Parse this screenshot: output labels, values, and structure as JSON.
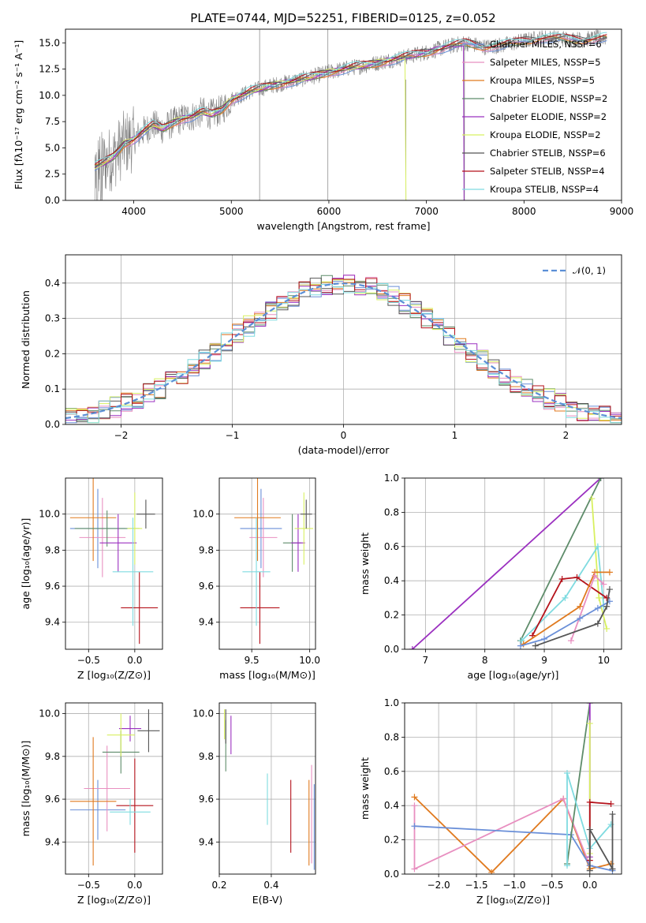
{
  "page_title": "PLATE=0744, MJD=52251, FIBERID=0125, z=0.052",
  "colors": {
    "chabrier_miles": "#6a8fd8",
    "salpeter_miles": "#e88fc0",
    "kroupa_miles": "#e07a1f",
    "chabrier_elodie": "#5e8c6a",
    "salpeter_elodie": "#9b30c0",
    "kroupa_elodie": "#d8f060",
    "chabrier_stelib": "#555555",
    "salpeter_stelib": "#b5121b",
    "kroupa_stelib": "#7fdbe0",
    "data": "#808080",
    "normal": "#5b8fd6"
  },
  "chart_data": [
    {
      "id": "spectrum",
      "type": "line",
      "xlabel": "wavelength [Angstrom, rest frame]",
      "ylabel": "Flux [fλ10⁻¹⁷ erg cm⁻² s⁻¹ A⁻¹]",
      "xlim": [
        3300,
        9000
      ],
      "ylim": [
        0,
        16.3
      ],
      "xticks": [
        "4000",
        "5000",
        "6000",
        "7000",
        "8000",
        "9000"
      ],
      "yticks": [
        "0.0",
        "2.5",
        "5.0",
        "7.5",
        "10.0",
        "12.5",
        "15.0"
      ],
      "xtick_values": [
        4000,
        5000,
        6000,
        7000,
        8000,
        9000
      ],
      "ytick_values": [
        0,
        2.5,
        5,
        7.5,
        10,
        12.5,
        15
      ],
      "continuum_wavelength": [
        3600,
        3700,
        3800,
        3900,
        4000,
        4100,
        4200,
        4300,
        4400,
        4500,
        4600,
        4700,
        4800,
        4900,
        5000,
        5200,
        5400,
        5600,
        5800,
        6000,
        6200,
        6400,
        6600,
        6800,
        7000,
        7200,
        7400,
        7600,
        7800,
        8000,
        8200,
        8400,
        8600,
        8800
      ],
      "continuum_flux": [
        3.2,
        3.6,
        4.2,
        5.4,
        5.8,
        6.6,
        7.2,
        6.8,
        7.4,
        7.8,
        8.0,
        8.4,
        8.2,
        8.6,
        9.6,
        10.4,
        10.9,
        11.3,
        11.7,
        12.2,
        12.6,
        12.9,
        13.3,
        13.7,
        14.1,
        14.6,
        15.0,
        14.6,
        14.8,
        15.2,
        15.5,
        15.4,
        15.3,
        15.5
      ],
      "legend": [
        "Chabrier MILES, NSSP=6",
        "Salpeter MILES, NSSP=5",
        "Kroupa MILES, NSSP=5",
        "Chabrier ELODIE, NSSP=2",
        "Salpeter ELODIE, NSSP=2",
        "Kroupa ELODIE, NSSP=2",
        "Chabrier STELIB, NSSP=6",
        "Salpeter STELIB, NSSP=4",
        "Kroupa STELIB, NSSP=4"
      ],
      "legend_placement": "right"
    },
    {
      "id": "residuals",
      "type": "histogram",
      "xlabel": "(data-model)/error",
      "ylabel": "Normed distribution",
      "xlim": [
        -2.5,
        2.5
      ],
      "ylim": [
        0,
        0.48
      ],
      "xticks": [
        "−2",
        "−1",
        "0",
        "1",
        "2"
      ],
      "yticks": [
        "0.0",
        "0.1",
        "0.2",
        "0.3",
        "0.4"
      ],
      "xtick_values": [
        -2,
        -1,
        0,
        1,
        2
      ],
      "ytick_values": [
        0,
        0.1,
        0.2,
        0.3,
        0.4
      ],
      "legend": [
        "𝒩(0, 1)"
      ],
      "legend_placement": "top-right",
      "grid": true
    },
    {
      "id": "age_vs_Z",
      "type": "errorbar",
      "xlabel": "Z [log₁₀(Z/Z⊙)]",
      "ylabel": "age  [log₁₀(age/yr)]",
      "xlim": [
        -0.75,
        0.3
      ],
      "ylim": [
        9.25,
        10.2
      ],
      "xticks": [
        "−0.5",
        "0.0"
      ],
      "xtick_values": [
        -0.5,
        0
      ],
      "yticks": [
        "9.4",
        "9.6",
        "9.8",
        "10.0"
      ],
      "ytick_values": [
        9.4,
        9.6,
        9.8,
        10.0
      ],
      "points": [
        {
          "s": "chabrier_miles",
          "x": -0.4,
          "y": 9.92,
          "xe": 0.3,
          "ye": 0.22
        },
        {
          "s": "salpeter_miles",
          "x": -0.35,
          "y": 9.87,
          "xe": 0.25,
          "ye": 0.22
        },
        {
          "s": "kroupa_miles",
          "x": -0.45,
          "y": 9.98,
          "xe": 0.25,
          "ye": 0.24
        },
        {
          "s": "chabrier_elodie",
          "x": -0.3,
          "y": 9.92,
          "xe": 0.35,
          "ye": 0.1
        },
        {
          "s": "salpeter_elodie",
          "x": -0.18,
          "y": 9.84,
          "xe": 0.2,
          "ye": 0.16
        },
        {
          "s": "kroupa_elodie",
          "x": 0.0,
          "y": 9.92,
          "xe": 0.08,
          "ye": 0.2
        },
        {
          "s": "chabrier_stelib",
          "x": 0.12,
          "y": 10.0,
          "xe": 0.1,
          "ye": 0.08
        },
        {
          "s": "salpeter_stelib",
          "x": 0.05,
          "y": 9.48,
          "xe": 0.2,
          "ye": 0.2
        },
        {
          "s": "kroupa_stelib",
          "x": -0.02,
          "y": 9.68,
          "xe": 0.22,
          "ye": 0.3
        }
      ]
    },
    {
      "id": "age_vs_mass",
      "type": "errorbar",
      "xlabel": "mass [log₁₀(M/M⊙)]",
      "ylabel": "",
      "xlim": [
        9.22,
        10.05
      ],
      "ylim": [
        9.25,
        10.2
      ],
      "xticks": [
        "9.5",
        "10.0"
      ],
      "xtick_values": [
        9.5,
        10.0
      ],
      "yticks": [
        "9.4",
        "9.6",
        "9.8",
        "10.0"
      ],
      "ytick_values": [
        9.4,
        9.6,
        9.8,
        10.0
      ],
      "points": [
        {
          "s": "chabrier_miles",
          "x": 9.58,
          "y": 9.92,
          "xe": 0.18,
          "ye": 0.22
        },
        {
          "s": "salpeter_miles",
          "x": 9.6,
          "y": 9.87,
          "xe": 0.12,
          "ye": 0.22
        },
        {
          "s": "kroupa_miles",
          "x": 9.55,
          "y": 9.98,
          "xe": 0.2,
          "ye": 0.24
        },
        {
          "s": "chabrier_elodie",
          "x": 9.85,
          "y": 9.84,
          "xe": 0.08,
          "ye": 0.16
        },
        {
          "s": "salpeter_elodie",
          "x": 9.9,
          "y": 9.84,
          "xe": 0.06,
          "ye": 0.16
        },
        {
          "s": "kroupa_elodie",
          "x": 9.95,
          "y": 9.92,
          "xe": 0.08,
          "ye": 0.2
        },
        {
          "s": "chabrier_stelib",
          "x": 9.97,
          "y": 10.0,
          "xe": 0.05,
          "ye": 0.08
        },
        {
          "s": "salpeter_stelib",
          "x": 9.57,
          "y": 9.48,
          "xe": 0.17,
          "ye": 0.2
        },
        {
          "s": "kroupa_stelib",
          "x": 9.54,
          "y": 9.68,
          "xe": 0.12,
          "ye": 0.3
        }
      ]
    },
    {
      "id": "massweight_vs_age",
      "type": "line",
      "xlabel": "age  [log₁₀(age/yr)]",
      "ylabel": "mass weight",
      "xlim": [
        6.65,
        10.3
      ],
      "ylim": [
        0,
        1.0
      ],
      "xticks": [
        "7",
        "8",
        "9",
        "10"
      ],
      "xtick_values": [
        7,
        8,
        9,
        10
      ],
      "yticks": [
        "0.0",
        "0.2",
        "0.4",
        "0.6",
        "0.8",
        "1.0"
      ],
      "ytick_values": [
        0,
        0.2,
        0.4,
        0.6,
        0.8,
        1.0
      ],
      "series": [
        {
          "s": "salpeter_elodie",
          "x": [
            6.78,
            9.95
          ],
          "y": [
            0.0,
            1.0
          ]
        },
        {
          "s": "chabrier_elodie",
          "x": [
            8.6,
            9.95
          ],
          "y": [
            0.05,
            1.0
          ]
        },
        {
          "s": "kroupa_elodie",
          "x": [
            9.8,
            9.92,
            10.05
          ],
          "y": [
            0.88,
            0.3,
            0.12
          ]
        },
        {
          "s": "kroupa_stelib",
          "x": [
            8.62,
            9.35,
            9.9,
            10.0
          ],
          "y": [
            0.05,
            0.3,
            0.6,
            0.25
          ]
        },
        {
          "s": "salpeter_stelib",
          "x": [
            8.8,
            9.3,
            9.55,
            10.05
          ],
          "y": [
            0.08,
            0.41,
            0.42,
            0.3
          ]
        },
        {
          "s": "kroupa_miles",
          "x": [
            8.65,
            9.6,
            9.85,
            10.1
          ],
          "y": [
            0.03,
            0.25,
            0.45,
            0.45
          ]
        },
        {
          "s": "salpeter_miles",
          "x": [
            9.45,
            9.85,
            10.0
          ],
          "y": [
            0.05,
            0.43,
            0.38
          ]
        },
        {
          "s": "chabrier_miles",
          "x": [
            8.6,
            9.0,
            9.6,
            9.9,
            10.1
          ],
          "y": [
            0.02,
            0.06,
            0.18,
            0.24,
            0.28
          ]
        },
        {
          "s": "chabrier_stelib",
          "x": [
            8.85,
            9.9,
            10.05,
            10.1
          ],
          "y": [
            0.02,
            0.15,
            0.25,
            0.35
          ]
        }
      ]
    },
    {
      "id": "mass_vs_Z",
      "type": "errorbar",
      "xlabel": "Z [log₁₀(Z/Z⊙)]",
      "ylabel": "mass [log₁₀(M/M⊙)]",
      "xlim": [
        -0.75,
        0.3
      ],
      "ylim": [
        9.25,
        10.05
      ],
      "xticks": [
        "−0.5",
        "0.0"
      ],
      "xtick_values": [
        -0.5,
        0
      ],
      "yticks": [
        "9.4",
        "9.6",
        "9.8",
        "10.0"
      ],
      "ytick_values": [
        9.4,
        9.6,
        9.8,
        10.0
      ],
      "points": [
        {
          "s": "chabrier_miles",
          "x": -0.4,
          "y": 9.55,
          "xe": 0.3,
          "ye": 0.14
        },
        {
          "s": "salpeter_miles",
          "x": -0.3,
          "y": 9.65,
          "xe": 0.25,
          "ye": 0.2
        },
        {
          "s": "kroupa_miles",
          "x": -0.45,
          "y": 9.59,
          "xe": 0.25,
          "ye": 0.3
        },
        {
          "s": "chabrier_elodie",
          "x": -0.15,
          "y": 9.82,
          "xe": 0.2,
          "ye": 0.1
        },
        {
          "s": "salpeter_elodie",
          "x": -0.05,
          "y": 9.93,
          "xe": 0.12,
          "ye": 0.06
        },
        {
          "s": "kroupa_elodie",
          "x": -0.15,
          "y": 9.9,
          "xe": 0.15,
          "ye": 0.1
        },
        {
          "s": "chabrier_stelib",
          "x": 0.15,
          "y": 9.92,
          "xe": 0.12,
          "ye": 0.1
        },
        {
          "s": "salpeter_stelib",
          "x": 0.0,
          "y": 9.57,
          "xe": 0.2,
          "ye": 0.22
        },
        {
          "s": "kroupa_stelib",
          "x": -0.05,
          "y": 9.54,
          "xe": 0.22,
          "ye": 0.06
        }
      ]
    },
    {
      "id": "mass_vs_EBV",
      "type": "errorbar",
      "xlabel": "E(B-V)",
      "ylabel": "",
      "xlim": [
        0.2,
        0.57
      ],
      "ylim": [
        9.25,
        10.05
      ],
      "xticks": [
        "0.2",
        "0.4"
      ],
      "xtick_values": [
        0.2,
        0.4
      ],
      "yticks": [
        "9.4",
        "9.6",
        "9.8",
        "10.0"
      ],
      "ytick_values": [
        9.4,
        9.6,
        9.8,
        10.0
      ],
      "points": [
        {
          "s": "chabrier_elodie",
          "x": 0.225,
          "y": 9.85,
          "xe": 0,
          "ye": 0.12
        },
        {
          "s": "salpeter_elodie",
          "x": 0.245,
          "y": 9.9,
          "xe": 0,
          "ye": 0.09
        },
        {
          "s": "kroupa_elodie",
          "x": 0.22,
          "y": 9.95,
          "xe": 0,
          "ye": 0.07
        },
        {
          "s": "chabrier_stelib",
          "x": 0.225,
          "y": 9.94,
          "xe": 0,
          "ye": 0.08
        },
        {
          "s": "kroupa_stelib",
          "x": 0.385,
          "y": 9.6,
          "xe": 0,
          "ye": 0.12
        },
        {
          "s": "salpeter_stelib",
          "x": 0.475,
          "y": 9.52,
          "xe": 0,
          "ye": 0.17
        },
        {
          "s": "kroupa_miles",
          "x": 0.545,
          "y": 9.49,
          "xe": 0,
          "ye": 0.2
        },
        {
          "s": "salpeter_miles",
          "x": 0.555,
          "y": 9.53,
          "xe": 0,
          "ye": 0.23
        },
        {
          "s": "chabrier_miles",
          "x": 0.565,
          "y": 9.47,
          "xe": 0,
          "ye": 0.2
        }
      ]
    },
    {
      "id": "massweight_vs_Z",
      "type": "line",
      "xlabel": "Z [log₁₀(Z/Z⊙)]",
      "ylabel": "mass weight",
      "xlim": [
        -2.45,
        0.42
      ],
      "ylim": [
        0,
        1.0
      ],
      "xticks": [
        "−2.0",
        "−1.5",
        "−1.0",
        "−0.5",
        "0.0"
      ],
      "xtick_values": [
        -2.0,
        -1.5,
        -1.0,
        -0.5,
        0.0
      ],
      "yticks": [
        "0.0",
        "0.2",
        "0.4",
        "0.6",
        "0.8",
        "1.0"
      ],
      "ytick_values": [
        0,
        0.2,
        0.4,
        0.6,
        0.8,
        1.0
      ],
      "series": [
        {
          "s": "kroupa_miles",
          "x": [
            -2.32,
            -1.3,
            -0.35,
            0.0,
            0.28
          ],
          "y": [
            0.45,
            0.01,
            0.44,
            0.03,
            0.06
          ]
        },
        {
          "s": "salpeter_miles",
          "x": [
            -2.32,
            -2.32,
            -0.35,
            0.0
          ],
          "y": [
            0.4,
            0.03,
            0.44,
            0.05
          ]
        },
        {
          "s": "chabrier_miles",
          "x": [
            -2.32,
            -0.25,
            0.0,
            0.3
          ],
          "y": [
            0.28,
            0.23,
            0.05,
            0.02
          ]
        },
        {
          "s": "chabrier_elodie",
          "x": [
            -0.3,
            0.0
          ],
          "y": [
            0.06,
            1.0
          ]
        },
        {
          "s": "salpeter_elodie",
          "x": [
            0.0,
            0.0
          ],
          "y": [
            0.1,
            1.0
          ]
        },
        {
          "s": "kroupa_elodie",
          "x": [
            0.0,
            0.0
          ],
          "y": [
            0.12,
            0.88
          ]
        },
        {
          "s": "kroupa_stelib",
          "x": [
            -0.3,
            -0.3,
            0.0,
            0.28
          ],
          "y": [
            0.05,
            0.59,
            0.15,
            0.29
          ]
        },
        {
          "s": "salpeter_stelib",
          "x": [
            0.0,
            0.0,
            0.28
          ],
          "y": [
            0.08,
            0.42,
            0.41
          ]
        },
        {
          "s": "chabrier_stelib",
          "x": [
            0.0,
            0.0,
            0.3,
            0.3
          ],
          "y": [
            0.02,
            0.26,
            0.03,
            0.35
          ]
        }
      ]
    }
  ]
}
